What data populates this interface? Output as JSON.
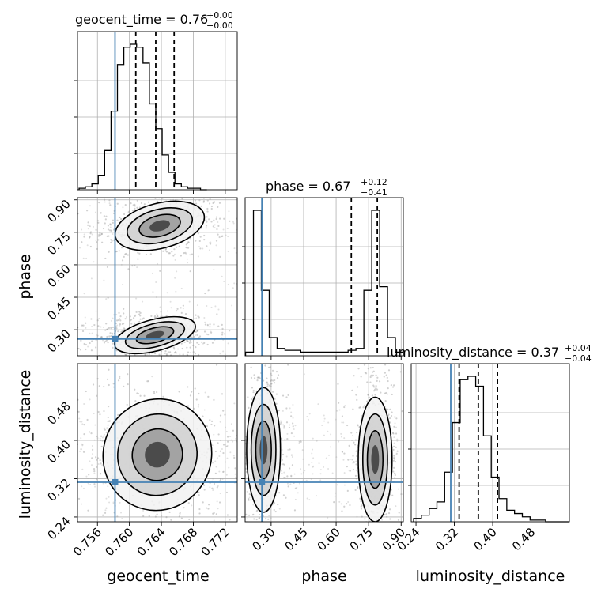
{
  "chart_data": {
    "type": "corner",
    "parameters": [
      "geocent_time",
      "phase",
      "luminosity_distance"
    ],
    "truths": {
      "geocent_time": 0.7582,
      "phase": 0.2573,
      "luminosity_distance": 0.3125
    },
    "titles": [
      {
        "text": "geocent_time = 0.76",
        "sup": "+0.00",
        "sub": "−0.00"
      },
      {
        "text": "phase = 0.67",
        "sup": "+0.12",
        "sub": "−0.41"
      },
      {
        "text": "luminosity_distance = 0.37",
        "sup": "+0.04",
        "sub": "−0.04"
      }
    ],
    "axes": {
      "geocent_time": {
        "range": [
          0.7535,
          0.7735
        ],
        "ticks": [
          "0.756",
          "0.760",
          "0.764",
          "0.768",
          "0.772"
        ],
        "label": "geocent_time"
      },
      "phase": {
        "range": [
          0.18,
          0.91
        ],
        "ticks": [
          "0.30",
          "0.45",
          "0.60",
          "0.75",
          "0.90"
        ],
        "label": "phase"
      },
      "luminosity_distance": {
        "range": [
          0.23,
          0.56
        ],
        "ticks": [
          "0.24",
          "0.32",
          "0.40",
          "0.48"
        ],
        "label": "luminosity_distance"
      }
    },
    "quantiles": {
      "geocent_time": [
        0.7608,
        0.7633,
        0.7656
      ],
      "phase": [
        0.26,
        0.67,
        0.79
      ],
      "luminosity_distance": [
        0.33,
        0.37,
        0.41
      ]
    },
    "histograms": {
      "geocent_time": {
        "edges_start": 0.7537,
        "bin_width": 0.0008,
        "counts": [
          1,
          2,
          4,
          10,
          27,
          54,
          86,
          98,
          100,
          98,
          87,
          59,
          42,
          24,
          12,
          4,
          2,
          1,
          1,
          0
        ]
      },
      "phase": {
        "edges_start": 0.182,
        "bin_width": 0.0364,
        "counts": [
          2,
          80,
          36,
          10,
          4,
          3,
          3,
          2,
          2,
          2,
          2,
          2,
          2,
          3,
          4,
          36,
          80,
          38,
          10,
          2
        ]
      },
      "luminosity_distance": {
        "edges_start": 0.235,
        "bin_width": 0.0162,
        "counts": [
          2,
          4,
          8,
          12,
          30,
          60,
          86,
          88,
          82,
          52,
          27,
          14,
          7,
          5,
          3,
          1,
          1,
          0,
          0,
          0
        ]
      }
    },
    "modes_2d": {
      "geocent_time_vs_phase": [
        [
          0.7638,
          0.78
        ],
        [
          0.7632,
          0.275
        ]
      ],
      "geocent_time_vs_luminosity_distance": [
        [
          0.7635,
          0.37
        ]
      ],
      "phase_vs_luminosity_distance": [
        [
          0.265,
          0.38
        ],
        [
          0.78,
          0.36
        ]
      ]
    }
  }
}
